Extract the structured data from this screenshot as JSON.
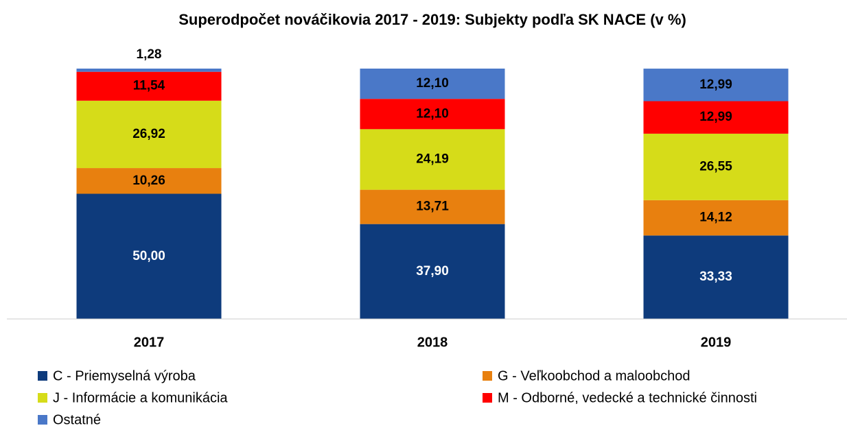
{
  "chart_data": {
    "type": "stacked_bar",
    "title": "Superodpočet nováčikovia 2017 - 2019: Subjekty podľa SK NACE (v %)",
    "categories": [
      "2017",
      "2018",
      "2019"
    ],
    "ylim": [
      0,
      100
    ],
    "series": [
      {
        "name": "C - Priemyselná výroba",
        "color": "#0e3b7c",
        "values": [
          50.0,
          37.9,
          33.33
        ],
        "value_labels": [
          "50,00",
          "37,90",
          "33,33"
        ]
      },
      {
        "name": "G - Veľkoobchod a maloobchod",
        "color": "#e8800f",
        "values": [
          10.26,
          13.71,
          14.12
        ],
        "value_labels": [
          "10,26",
          "13,71",
          "14,12"
        ]
      },
      {
        "name": "J - Informácie a komunikácia",
        "color": "#d6dc19",
        "values": [
          26.92,
          24.19,
          26.55
        ],
        "value_labels": [
          "26,92",
          "24,19",
          "26,55"
        ]
      },
      {
        "name": "M - Odborné, vedecké a technické činnosti",
        "color": "#ff0000",
        "values": [
          11.54,
          12.1,
          12.99
        ],
        "value_labels": [
          "11,54",
          "12,10",
          "12,99"
        ]
      },
      {
        "name": "Ostatné",
        "color": "#4a78c8",
        "values": [
          1.28,
          12.1,
          12.99
        ],
        "value_labels": [
          "1,28",
          "12,10",
          "12,99"
        ]
      }
    ]
  }
}
